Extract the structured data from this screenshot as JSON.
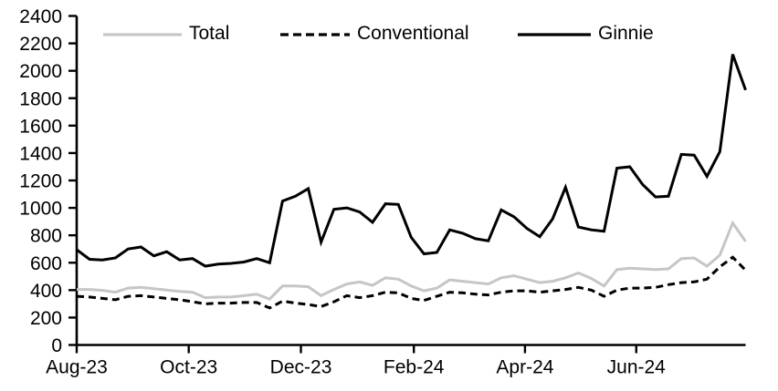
{
  "chart_data": {
    "type": "line",
    "title": "",
    "xlabel": "",
    "ylabel": "",
    "x_unit": "weekly observations",
    "x_range_text": "Aug-23 to Aug-24",
    "n_points": 53,
    "ylim": [
      0,
      2400
    ],
    "y_tick_step": 200,
    "y_tick_labels": [
      "0",
      "200",
      "400",
      "600",
      "800",
      "1000",
      "1200",
      "1400",
      "1600",
      "1800",
      "2000",
      "2200",
      "2400"
    ],
    "x_tick_labels": [
      "Aug-23",
      "Oct-23",
      "Dec-23",
      "Feb-24",
      "Apr-24",
      "Jun-24"
    ],
    "x_tick_positions": [
      0,
      8.71,
      17.43,
      26.21,
      34.85,
      43.5
    ],
    "grid": false,
    "legend_position": "top",
    "axis_color": "#000000",
    "series": [
      {
        "name": "Total",
        "color": "#c6c6c6",
        "style": "solid",
        "values": [
          405,
          405,
          398,
          385,
          415,
          420,
          410,
          400,
          390,
          385,
          345,
          350,
          350,
          360,
          370,
          335,
          430,
          430,
          425,
          360,
          405,
          445,
          460,
          435,
          490,
          480,
          430,
          395,
          415,
          475,
          465,
          455,
          445,
          490,
          505,
          480,
          455,
          465,
          490,
          525,
          485,
          430,
          550,
          560,
          555,
          550,
          555,
          630,
          635,
          575,
          655,
          890,
          755
        ]
      },
      {
        "name": "Conventional",
        "color": "#000000",
        "style": "dashed",
        "values": [
          355,
          350,
          340,
          330,
          355,
          360,
          350,
          340,
          330,
          315,
          300,
          305,
          305,
          310,
          310,
          270,
          320,
          305,
          295,
          280,
          315,
          360,
          345,
          360,
          385,
          380,
          340,
          325,
          355,
          385,
          380,
          370,
          365,
          385,
          395,
          395,
          385,
          395,
          405,
          420,
          400,
          355,
          400,
          415,
          415,
          420,
          440,
          455,
          460,
          480,
          570,
          640,
          545
        ]
      },
      {
        "name": "Ginnie",
        "color": "#000000",
        "style": "solid",
        "values": [
          695,
          625,
          620,
          635,
          700,
          715,
          650,
          680,
          620,
          630,
          575,
          590,
          595,
          605,
          630,
          600,
          1050,
          1085,
          1140,
          750,
          990,
          1000,
          970,
          895,
          1030,
          1025,
          785,
          665,
          675,
          840,
          815,
          775,
          760,
          985,
          935,
          850,
          790,
          920,
          1150,
          860,
          840,
          830,
          1290,
          1300,
          1170,
          1080,
          1085,
          1390,
          1385,
          1230,
          1410,
          2120,
          1860
        ]
      }
    ]
  },
  "legend": {
    "total_label": "Total",
    "conventional_label": "Conventional",
    "ginnie_label": "Ginnie"
  }
}
